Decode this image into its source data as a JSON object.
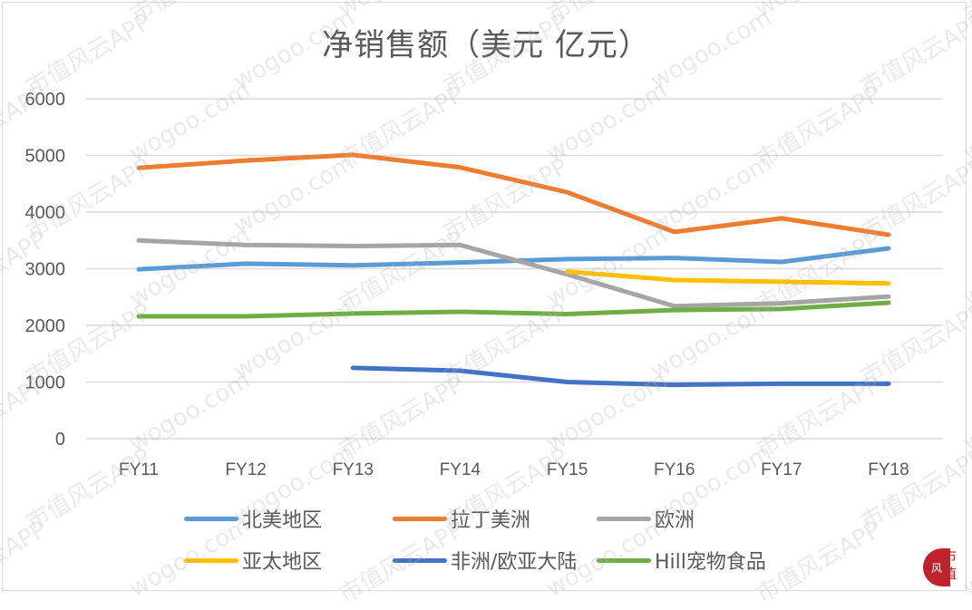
{
  "chart_data": {
    "type": "line",
    "title": "净销售额（美元 亿元）",
    "xlabel": "",
    "ylabel": "",
    "categories": [
      "FY11",
      "FY12",
      "FY13",
      "FY14",
      "FY15",
      "FY16",
      "FY17",
      "FY18"
    ],
    "ylim": [
      0,
      6000
    ],
    "yticks": [
      0,
      1000,
      2000,
      3000,
      4000,
      5000,
      6000
    ],
    "grid": true,
    "legend_position": "bottom",
    "series": [
      {
        "name": "北美地区",
        "color": "#5b9bd5",
        "values": [
          2990,
          3090,
          3060,
          3110,
          3170,
          3190,
          3120,
          3360
        ]
      },
      {
        "name": "拉丁美洲",
        "color": "#ed7d31",
        "values": [
          4780,
          4910,
          5010,
          4790,
          4350,
          3650,
          3890,
          3600
        ]
      },
      {
        "name": "欧洲",
        "color": "#a5a5a5",
        "values": [
          3500,
          3420,
          3400,
          3420,
          2900,
          2340,
          2390,
          2510
        ]
      },
      {
        "name": "亚太地区",
        "color": "#ffc000",
        "values": [
          null,
          null,
          null,
          null,
          2950,
          2800,
          2770,
          2740
        ]
      },
      {
        "name": "非洲/欧亚大陆",
        "color": "#4472c4",
        "values": [
          null,
          null,
          1250,
          1200,
          1000,
          950,
          970,
          970
        ]
      },
      {
        "name": "Hill宠物食品",
        "color": "#70ad47",
        "values": [
          2160,
          2160,
          2210,
          2240,
          2200,
          2270,
          2290,
          2400
        ]
      }
    ]
  },
  "watermark": {
    "text1": "市值风云APP",
    "text2": "wogoo.com"
  },
  "logo": {
    "mark": "风",
    "text": "市值"
  }
}
